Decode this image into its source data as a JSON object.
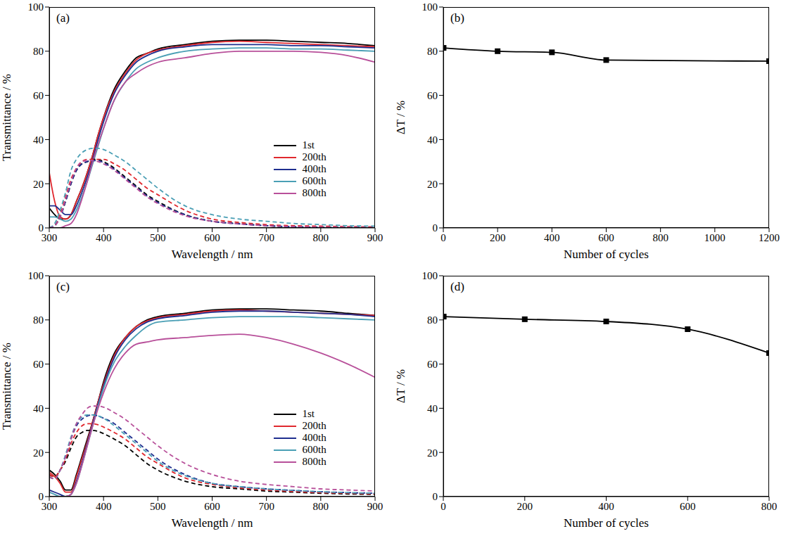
{
  "chart_data": [
    {
      "type": "line",
      "title": "(a)",
      "x_label": "Wavelength / nm",
      "y_label": "Transmittance / %",
      "x": [
        300,
        310,
        320,
        330,
        340,
        350,
        360,
        370,
        380,
        390,
        400,
        420,
        440,
        460,
        480,
        500,
        550,
        600,
        650,
        700,
        750,
        800,
        850,
        900
      ],
      "xlim": [
        300,
        900
      ],
      "xticks": [
        300,
        400,
        500,
        600,
        700,
        800,
        900
      ],
      "ylim": [
        0,
        100
      ],
      "yticks": [
        0,
        20,
        40,
        60,
        80,
        100
      ],
      "legend": "right",
      "series": [
        {
          "name": "1st",
          "color": "#000000",
          "line_style": "solid",
          "values": [
            9,
            6,
            4,
            4,
            6,
            12,
            18,
            25,
            33,
            42,
            50,
            63,
            71,
            77,
            79,
            81,
            83,
            84.5,
            85,
            85,
            84.5,
            84,
            83.5,
            82.5
          ]
        },
        {
          "name": "200th",
          "color": "#e0282e",
          "line_style": "solid",
          "values": [
            25,
            12,
            5,
            4,
            6,
            12,
            18,
            25,
            33,
            42,
            50,
            62,
            70,
            76,
            79,
            80.5,
            82.5,
            84,
            84.5,
            84,
            83.5,
            83,
            82.5,
            82
          ]
        },
        {
          "name": "400th",
          "color": "#1f2f8f",
          "line_style": "solid",
          "values": [
            10,
            10,
            8,
            6,
            6,
            10,
            16,
            23,
            31,
            40,
            48,
            61,
            69,
            75,
            78,
            80,
            82,
            83,
            83,
            83,
            82.5,
            82.5,
            82,
            81.5
          ]
        },
        {
          "name": "600th",
          "color": "#4a9fb5",
          "line_style": "solid",
          "values": [
            5,
            5,
            4,
            3,
            4,
            8,
            14,
            21,
            29,
            37,
            45,
            58,
            66,
            72,
            75,
            77,
            80,
            81,
            81.5,
            81.5,
            81,
            81,
            80.5,
            80
          ]
        },
        {
          "name": "800th",
          "color": "#b8509a",
          "line_style": "solid",
          "values": [
            0,
            0,
            0,
            1,
            2,
            6,
            13,
            21,
            30,
            38,
            45,
            58,
            66,
            70,
            73,
            75,
            77,
            79,
            80,
            80,
            80,
            79.5,
            78,
            75
          ]
        },
        {
          "name": "1st",
          "color": "#000000",
          "line_style": "dashed",
          "values": [
            0,
            1,
            5,
            12,
            20,
            26,
            29,
            30,
            31,
            31,
            30,
            27,
            23,
            19,
            15,
            12,
            6,
            3,
            2,
            1,
            0.5,
            0.3,
            0.2,
            0.1
          ]
        },
        {
          "name": "200th",
          "color": "#e0282e",
          "line_style": "dashed",
          "values": [
            0,
            1,
            6,
            14,
            22,
            27,
            30,
            31,
            31,
            31,
            31,
            29,
            26,
            22,
            18,
            15,
            8,
            4,
            2.5,
            1.5,
            1,
            0.8,
            0.6,
            0.5
          ]
        },
        {
          "name": "400th",
          "color": "#1f2f8f",
          "line_style": "dashed",
          "values": [
            0,
            1,
            5,
            12,
            20,
            26,
            29,
            30,
            30.5,
            30.5,
            29.5,
            26.5,
            22.5,
            18.5,
            14.5,
            11.5,
            6,
            3,
            1.8,
            1,
            0.5,
            0.3,
            0.2,
            0.1
          ]
        },
        {
          "name": "600th",
          "color": "#4a9fb5",
          "line_style": "dashed",
          "values": [
            0,
            2,
            8,
            16,
            26,
            31,
            34,
            35.5,
            36,
            36,
            35.5,
            33,
            30,
            26,
            22,
            18,
            10,
            6,
            4,
            3,
            2,
            1.5,
            1,
            0.8
          ]
        },
        {
          "name": "800th",
          "color": "#b8509a",
          "line_style": "dashed",
          "values": [
            0,
            1,
            5,
            13,
            21,
            27,
            30,
            30.5,
            30.5,
            30,
            29,
            26,
            22,
            18,
            14,
            11,
            5.5,
            3,
            1.8,
            1,
            0.6,
            0.4,
            0.3,
            0.2
          ]
        }
      ]
    },
    {
      "type": "line",
      "title": "(b)",
      "x_label": "Number of cycles",
      "y_label": "ΔT / %",
      "x": [
        1,
        200,
        400,
        600,
        1200
      ],
      "xlim": [
        0,
        1200
      ],
      "xticks": [
        0,
        200,
        400,
        600,
        800,
        1000,
        1200
      ],
      "ylim": [
        0,
        100
      ],
      "yticks": [
        0,
        20,
        40,
        60,
        80,
        100
      ],
      "series": [
        {
          "color": "#000000",
          "line_style": "solid",
          "marker": "square",
          "values": [
            81.5,
            80,
            79.5,
            76,
            75.5
          ]
        }
      ]
    },
    {
      "type": "line",
      "title": "(c)",
      "x_label": "Wavelength / nm",
      "y_label": "Transmittance / %",
      "x": [
        300,
        310,
        320,
        330,
        340,
        350,
        360,
        370,
        380,
        390,
        400,
        420,
        440,
        460,
        480,
        500,
        550,
        600,
        650,
        700,
        750,
        800,
        850,
        900
      ],
      "xlim": [
        300,
        900
      ],
      "xticks": [
        300,
        400,
        500,
        600,
        700,
        800,
        900
      ],
      "ylim": [
        0,
        100
      ],
      "yticks": [
        0,
        20,
        40,
        60,
        80,
        100
      ],
      "legend": "right",
      "series": [
        {
          "name": "1st",
          "color": "#000000",
          "line_style": "solid",
          "values": [
            12,
            10,
            7,
            3,
            3,
            10,
            18,
            26,
            34,
            43,
            52,
            65,
            72,
            77,
            80,
            81.5,
            83,
            84.5,
            85,
            85,
            84.5,
            84,
            83,
            82
          ]
        },
        {
          "name": "200th",
          "color": "#e0282e",
          "line_style": "solid",
          "values": [
            11,
            9,
            6,
            2,
            2,
            9,
            17,
            25,
            34,
            43,
            51,
            64,
            72,
            77,
            79.5,
            81,
            82.5,
            84,
            84.5,
            84,
            83.5,
            83,
            82.5,
            82
          ]
        },
        {
          "name": "400th",
          "color": "#1f2f8f",
          "line_style": "solid",
          "values": [
            3,
            2,
            1,
            0,
            1,
            7,
            15,
            24,
            33,
            42,
            50,
            63,
            71,
            76,
            79,
            80.5,
            82,
            83.5,
            84,
            84,
            83.5,
            83,
            82.5,
            81.5
          ]
        },
        {
          "name": "600th",
          "color": "#4a9fb5",
          "line_style": "solid",
          "values": [
            2,
            1,
            0,
            0,
            1,
            6,
            14,
            23,
            32,
            41,
            49,
            61,
            68,
            73,
            77,
            79,
            80,
            81,
            81.5,
            81.5,
            81.5,
            81,
            80.5,
            80
          ]
        },
        {
          "name": "800th",
          "color": "#b8509a",
          "line_style": "solid",
          "values": [
            0,
            0,
            0,
            0,
            1,
            6,
            14,
            23,
            32,
            40,
            47,
            58,
            65,
            69,
            70,
            71,
            72,
            73,
            73.5,
            72,
            69,
            65,
            60,
            54
          ]
        },
        {
          "name": "1st",
          "color": "#000000",
          "line_style": "dashed",
          "values": [
            10,
            9,
            12,
            16,
            22,
            27,
            29,
            30,
            30,
            29.5,
            28.5,
            26,
            23,
            19,
            15,
            12,
            7,
            4.5,
            3.5,
            2.5,
            2,
            1.5,
            1.2,
            1
          ]
        },
        {
          "name": "200th",
          "color": "#e0282e",
          "line_style": "dashed",
          "values": [
            10,
            9,
            12,
            17,
            24,
            29,
            32,
            33,
            33,
            32.5,
            31.5,
            29,
            26,
            22,
            18,
            15,
            8.5,
            5.5,
            4,
            3,
            2.3,
            1.8,
            1.5,
            1.2
          ]
        },
        {
          "name": "400th",
          "color": "#1f2f8f",
          "line_style": "dashed",
          "values": [
            9,
            8,
            12,
            18,
            26,
            32,
            35,
            36.5,
            37,
            36.5,
            35.5,
            33,
            29,
            25,
            21,
            17,
            10,
            6,
            4.5,
            3.5,
            2.8,
            2.2,
            1.8,
            1.5
          ]
        },
        {
          "name": "600th",
          "color": "#4a9fb5",
          "line_style": "dashed",
          "values": [
            9,
            8,
            12,
            19,
            27,
            33,
            36,
            37,
            37,
            36.5,
            35.5,
            32,
            28,
            24,
            20,
            16,
            9.5,
            6,
            4.5,
            3.5,
            2.8,
            2.2,
            1.8,
            1.5
          ]
        },
        {
          "name": "800th",
          "color": "#b8509a",
          "line_style": "dashed",
          "values": [
            9,
            8,
            12,
            18,
            26,
            33,
            37,
            40,
            41,
            41,
            40.5,
            38,
            35,
            31,
            27,
            23,
            15,
            10,
            7,
            5.5,
            4.5,
            3.5,
            3,
            2.5
          ]
        }
      ]
    },
    {
      "type": "line",
      "title": "(d)",
      "x_label": "Number of cycles",
      "y_label": "ΔT / %",
      "x": [
        1,
        200,
        400,
        600,
        800
      ],
      "xlim": [
        0,
        800
      ],
      "xticks": [
        0,
        200,
        400,
        600,
        800
      ],
      "ylim": [
        0,
        100
      ],
      "yticks": [
        0,
        20,
        40,
        60,
        80,
        100
      ],
      "series": [
        {
          "color": "#000000",
          "line_style": "solid",
          "marker": "square",
          "values": [
            81.5,
            80.3,
            79.3,
            75.8,
            65
          ]
        }
      ]
    }
  ]
}
